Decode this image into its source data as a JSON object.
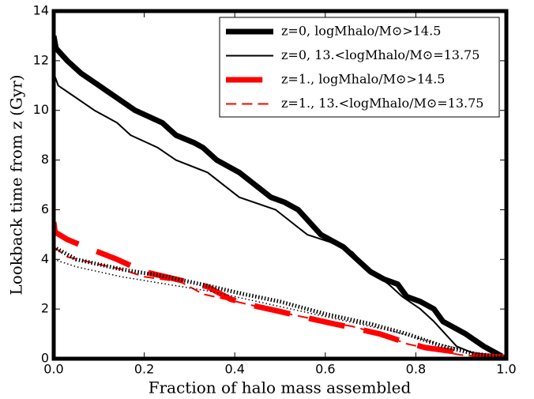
{
  "chart_data": {
    "type": "line",
    "xlabel": "Fraction of halo mass assembled",
    "ylabel": "Lookback time from z (Gyr)",
    "xlim": [
      0,
      1
    ],
    "ylim": [
      0,
      14
    ],
    "xticks": [
      {
        "value": 0,
        "label": "0.0"
      },
      0.2,
      0.4,
      0.6,
      0.8,
      {
        "value": 1,
        "label": "1.0"
      }
    ],
    "yticks": [
      0,
      2,
      4,
      6,
      8,
      10,
      12,
      14
    ],
    "legend": "upper right",
    "series": [
      {
        "name": "z=0, logMhalo/M⊙>14.5",
        "color": "#000000",
        "linewidth": 7,
        "linestyle": "solid",
        "x": [
          0,
          0.005,
          0.03,
          0.06,
          0.1,
          0.14,
          0.18,
          0.24,
          0.27,
          0.31,
          0.33,
          0.36,
          0.41,
          0.48,
          0.51,
          0.54,
          0.59,
          0.64,
          0.67,
          0.7,
          0.73,
          0.76,
          0.78,
          0.81,
          0.84,
          0.86,
          0.91,
          0.95,
          0.99
        ],
        "values": [
          13,
          12.5,
          12,
          11.5,
          11,
          10.5,
          10,
          9.5,
          9,
          8.7,
          8.5,
          8,
          7.5,
          6.5,
          6.3,
          6,
          5,
          4.5,
          4,
          3.5,
          3.2,
          3,
          2.5,
          2.3,
          2,
          1.5,
          1,
          0.5,
          0.1
        ]
      },
      {
        "name": "z=0, 13.<logMhalo/M⊙=13.75",
        "color": "#000000",
        "linewidth": 2,
        "linestyle": "solid",
        "x": [
          0,
          0.01,
          0.05,
          0.09,
          0.14,
          0.17,
          0.23,
          0.27,
          0.34,
          0.41,
          0.49,
          0.56,
          0.61,
          0.66,
          0.7,
          0.74,
          0.77,
          0.81,
          0.84,
          0.89,
          0.93,
          1.0
        ],
        "values": [
          11.5,
          11,
          10.5,
          10,
          9.5,
          9,
          8.5,
          8,
          7.5,
          6.5,
          6,
          5,
          4.7,
          4.3,
          3.5,
          3,
          2.5,
          2,
          1.5,
          0.5,
          0.2,
          0.05
        ]
      },
      {
        "name": "z=1., logMhalo/M⊙>14.5",
        "color": "#ff0000",
        "linewidth": 7,
        "linestyle": "dashed",
        "x": [
          0,
          0.003,
          0.03,
          0.07,
          0.14,
          0.2,
          0.27,
          0.34,
          0.39,
          0.45,
          0.5,
          0.57,
          0.62,
          0.66,
          0.72,
          0.77,
          0.82,
          0.88,
          0.92,
          1.0
        ],
        "values": [
          5.5,
          5.1,
          4.8,
          4.5,
          4,
          3.5,
          3.2,
          2.9,
          2.4,
          2.1,
          1.9,
          1.6,
          1.4,
          1.25,
          1,
          0.7,
          0.45,
          0.3,
          0.15,
          0.05
        ]
      },
      {
        "name": "z=1., 13.<logMhalo/M⊙=13.75",
        "color": "#ff0000",
        "linewidth": 2,
        "linestyle": "dashed",
        "x": [
          0,
          0.03,
          0.1,
          0.15,
          0.2,
          0.28,
          0.33,
          0.38,
          0.45,
          0.52,
          0.6,
          0.66,
          0.72,
          0.78,
          0.84,
          0.9,
          1.0
        ],
        "values": [
          4.5,
          4.1,
          3.8,
          3.6,
          3.3,
          3.1,
          2.6,
          2.4,
          2.1,
          1.8,
          1.5,
          1.3,
          1.0,
          0.6,
          0.35,
          0.15,
          0.02
        ]
      },
      {
        "color": "#000000",
        "linewidth": 7,
        "linestyle": "dotted",
        "x": [
          0,
          0.05,
          0.15,
          0.25,
          0.35,
          0.42,
          0.5,
          0.6,
          0.7,
          0.78,
          0.86,
          0.93,
          1.0
        ],
        "values": [
          4.5,
          4.0,
          3.6,
          3.3,
          2.9,
          2.6,
          2.3,
          1.8,
          1.4,
          1.0,
          0.5,
          0.2,
          0.05
        ]
      },
      {
        "color": "#000000",
        "linewidth": 2,
        "linestyle": "dotted",
        "x": [
          0,
          0.05,
          0.15,
          0.25,
          0.35,
          0.45,
          0.55,
          0.65,
          0.75,
          0.85,
          0.93,
          1.0
        ],
        "values": [
          4.0,
          3.7,
          3.3,
          3.0,
          2.7,
          2.3,
          1.9,
          1.5,
          1.1,
          0.6,
          0.25,
          0.02
        ]
      }
    ]
  }
}
